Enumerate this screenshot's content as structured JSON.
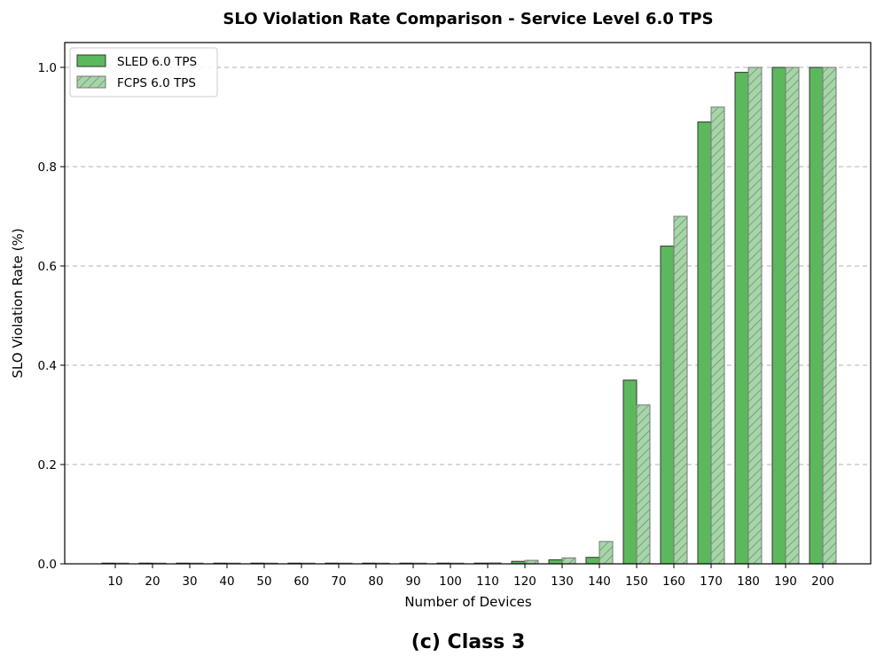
{
  "caption": "(c) Class 3",
  "colors": {
    "sled_fill": "#5cb85c",
    "fcps_fill": "#a5d6a7",
    "fcps_hatch": "#7a8a7a",
    "bar_edge": "#333333",
    "fcps_edge": "#777777",
    "grid": "#b0b0b0"
  },
  "chart_data": {
    "type": "bar",
    "title": "SLO Violation Rate Comparison - Service Level 6.0 TPS",
    "xlabel": "Number of Devices",
    "ylabel": "SLO Violation Rate (%)",
    "categories": [
      "10",
      "20",
      "30",
      "40",
      "50",
      "60",
      "70",
      "80",
      "90",
      "100",
      "110",
      "120",
      "130",
      "140",
      "150",
      "160",
      "170",
      "180",
      "190",
      "200"
    ],
    "series": [
      {
        "name": "SLED 6.0 TPS",
        "style": "solid",
        "values": [
          0,
          0,
          0.001,
          0,
          0,
          0,
          0.001,
          0.001,
          0,
          0,
          0,
          0.005,
          0.008,
          0.013,
          0.37,
          0.64,
          0.89,
          0.99,
          1.0,
          1.0
        ]
      },
      {
        "name": "FCPS 6.0 TPS",
        "style": "hatched",
        "values": [
          0,
          0,
          0,
          0,
          0,
          0,
          0,
          0.001,
          0,
          0,
          0.002,
          0.007,
          0.012,
          0.045,
          0.32,
          0.7,
          0.92,
          1.0,
          1.0,
          1.0
        ]
      }
    ],
    "ylim": [
      0,
      1.05
    ],
    "yticks": [
      "0.0",
      "0.2",
      "0.4",
      "0.6",
      "0.8",
      "1.0"
    ],
    "grid": "y-dashed",
    "legend_position": "top-left"
  }
}
